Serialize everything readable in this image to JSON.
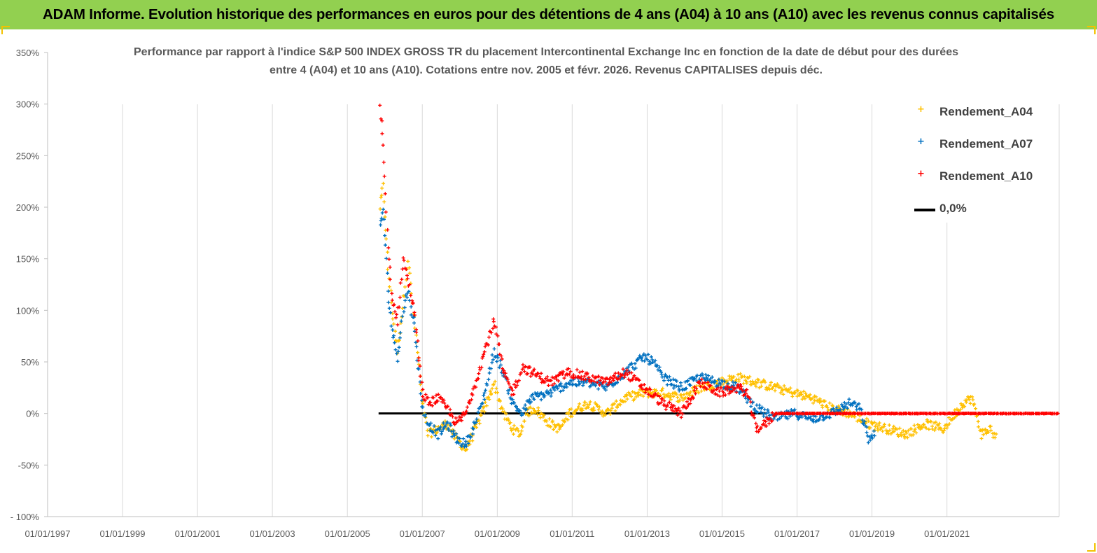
{
  "banner": {
    "title": "ADAM Informe. Evolution historique des performances en euros pour des détentions de 4 ans (A04) à 10 ans (A10) avec les revenus connus capitalisés"
  },
  "chart": {
    "title_line1": "Performance par rapport à l'indice S&P 500 INDEX GROSS TR  du placement Intercontinental Exchange Inc en fonction de la date de début pour des durées",
    "title_line2": "entre 4 (A04) et 10 ans (A10). Cotations entre nov. 2005 et févr. 2026. Revenus CAPITALISES depuis déc."
  },
  "legend": [
    {
      "label": "Rendement_A04",
      "color": "#ffc000",
      "marker": "+"
    },
    {
      "label": "Rendement_A07",
      "color": "#0070c0",
      "marker": "+"
    },
    {
      "label": "Rendement_A10",
      "color": "#ff0000",
      "marker": "+"
    },
    {
      "label": "0,0%",
      "color": "#000000",
      "marker": "line"
    }
  ],
  "chart_data": {
    "type": "scatter",
    "x_ticks": [
      "01/01/1997",
      "01/01/1999",
      "01/01/2001",
      "01/01/2003",
      "01/01/2005",
      "01/01/2007",
      "01/01/2009",
      "01/01/2011",
      "01/01/2013",
      "01/01/2015",
      "01/01/2017",
      "01/01/2019",
      "01/01/2021"
    ],
    "xlim": [
      "1997-01-01",
      "2023-12-31"
    ],
    "y_ticks": [
      "- 100%",
      "-50%",
      "0%",
      "50%",
      "100%",
      "150%",
      "200%",
      "250%",
      "300%",
      "350%"
    ],
    "ylim": [
      -100,
      350
    ],
    "grid": "vertical",
    "legend_position": "right",
    "series": [
      {
        "name": "Rendement_A04",
        "color": "#ffc000",
        "points": [
          [
            "2005-11-15",
            200
          ],
          [
            "2005-12-15",
            220
          ],
          [
            "2006-02-01",
            140
          ],
          [
            "2006-03-15",
            100
          ],
          [
            "2006-05-01",
            60
          ],
          [
            "2006-07-01",
            110
          ],
          [
            "2006-08-15",
            150
          ],
          [
            "2006-10-15",
            90
          ],
          [
            "2006-12-01",
            45
          ],
          [
            "2007-01-01",
            10
          ],
          [
            "2007-03-01",
            -20
          ],
          [
            "2007-06-01",
            -15
          ],
          [
            "2007-09-01",
            -10
          ],
          [
            "2007-12-01",
            -25
          ],
          [
            "2008-03-01",
            -35
          ],
          [
            "2008-06-01",
            -15
          ],
          [
            "2008-09-01",
            5
          ],
          [
            "2008-12-01",
            30
          ],
          [
            "2009-03-01",
            0
          ],
          [
            "2009-06-01",
            -15
          ],
          [
            "2009-08-15",
            -20
          ],
          [
            "2009-10-01",
            0
          ],
          [
            "2010-01-01",
            5
          ],
          [
            "2010-06-01",
            -10
          ],
          [
            "2010-09-01",
            -15
          ],
          [
            "2010-12-01",
            0
          ],
          [
            "2011-06-01",
            10
          ],
          [
            "2011-12-01",
            0
          ],
          [
            "2012-06-01",
            15
          ],
          [
            "2012-12-01",
            20
          ],
          [
            "2013-06-01",
            20
          ],
          [
            "2013-12-01",
            15
          ],
          [
            "2014-06-01",
            25
          ],
          [
            "2014-12-01",
            30
          ],
          [
            "2015-06-01",
            35
          ],
          [
            "2015-12-01",
            30
          ],
          [
            "2016-06-01",
            25
          ],
          [
            "2016-12-01",
            20
          ],
          [
            "2017-06-01",
            15
          ],
          [
            "2017-12-01",
            5
          ],
          [
            "2018-06-01",
            0
          ],
          [
            "2018-12-01",
            -10
          ],
          [
            "2019-06-01",
            -15
          ],
          [
            "2019-12-01",
            -20
          ],
          [
            "2020-06-01",
            -10
          ],
          [
            "2020-12-01",
            -15
          ],
          [
            "2021-06-01",
            10
          ],
          [
            "2021-09-01",
            15
          ],
          [
            "2021-12-01",
            -20
          ],
          [
            "2022-03-01",
            -15
          ],
          [
            "2022-05-01",
            -25
          ]
        ]
      },
      {
        "name": "Rendement_A07",
        "color": "#0070c0",
        "points": [
          [
            "2005-11-15",
            180
          ],
          [
            "2005-12-15",
            200
          ],
          [
            "2006-02-01",
            120
          ],
          [
            "2006-03-15",
            80
          ],
          [
            "2006-05-01",
            55
          ],
          [
            "2006-07-01",
            100
          ],
          [
            "2006-08-15",
            120
          ],
          [
            "2006-10-15",
            85
          ],
          [
            "2006-12-01",
            40
          ],
          [
            "2007-01-01",
            5
          ],
          [
            "2007-03-01",
            -10
          ],
          [
            "2007-06-01",
            -20
          ],
          [
            "2007-09-01",
            -10
          ],
          [
            "2007-12-01",
            -25
          ],
          [
            "2008-03-01",
            -30
          ],
          [
            "2008-06-01",
            -10
          ],
          [
            "2008-09-01",
            20
          ],
          [
            "2008-12-01",
            60
          ],
          [
            "2009-03-01",
            40
          ],
          [
            "2009-06-01",
            10
          ],
          [
            "2009-09-01",
            0
          ],
          [
            "2009-12-01",
            15
          ],
          [
            "2010-06-01",
            20
          ],
          [
            "2010-12-01",
            30
          ],
          [
            "2011-06-01",
            30
          ],
          [
            "2011-12-01",
            25
          ],
          [
            "2012-06-01",
            40
          ],
          [
            "2012-12-01",
            55
          ],
          [
            "2013-03-01",
            50
          ],
          [
            "2013-06-01",
            35
          ],
          [
            "2013-12-01",
            25
          ],
          [
            "2014-06-01",
            35
          ],
          [
            "2014-12-01",
            30
          ],
          [
            "2015-06-01",
            25
          ],
          [
            "2015-12-01",
            5
          ],
          [
            "2016-06-01",
            -5
          ],
          [
            "2016-12-01",
            0
          ],
          [
            "2017-06-01",
            -5
          ],
          [
            "2017-12-01",
            0
          ],
          [
            "2018-06-01",
            10
          ],
          [
            "2018-09-01",
            5
          ],
          [
            "2018-12-01",
            -25
          ],
          [
            "2019-02-01",
            -20
          ]
        ]
      },
      {
        "name": "Rendement_A10",
        "color": "#ff0000",
        "points": [
          [
            "2005-11-15",
            300
          ],
          [
            "2005-12-15",
            260
          ],
          [
            "2006-02-01",
            160
          ],
          [
            "2006-03-15",
            110
          ],
          [
            "2006-05-01",
            90
          ],
          [
            "2006-07-01",
            150
          ],
          [
            "2006-08-15",
            130
          ],
          [
            "2006-10-15",
            100
          ],
          [
            "2006-12-01",
            50
          ],
          [
            "2007-01-01",
            20
          ],
          [
            "2007-03-01",
            10
          ],
          [
            "2007-06-01",
            15
          ],
          [
            "2007-09-01",
            5
          ],
          [
            "2007-12-01",
            -10
          ],
          [
            "2008-03-01",
            0
          ],
          [
            "2008-06-01",
            30
          ],
          [
            "2008-09-01",
            60
          ],
          [
            "2008-12-01",
            90
          ],
          [
            "2009-03-01",
            40
          ],
          [
            "2009-06-01",
            20
          ],
          [
            "2009-09-01",
            45
          ],
          [
            "2009-12-01",
            40
          ],
          [
            "2010-06-01",
            30
          ],
          [
            "2010-12-01",
            40
          ],
          [
            "2011-06-01",
            35
          ],
          [
            "2011-12-01",
            30
          ],
          [
            "2012-06-01",
            40
          ],
          [
            "2012-12-01",
            25
          ],
          [
            "2013-06-01",
            10
          ],
          [
            "2013-12-01",
            0
          ],
          [
            "2014-06-01",
            30
          ],
          [
            "2014-12-01",
            20
          ],
          [
            "2015-06-01",
            25
          ],
          [
            "2015-09-01",
            20
          ],
          [
            "2015-12-01",
            -15
          ],
          [
            "2016-03-01",
            -10
          ],
          [
            "2016-06-01",
            0
          ],
          [
            "2023-12-31",
            0
          ]
        ]
      },
      {
        "name": "0,0%",
        "color": "#000000",
        "points": [
          [
            "2005-11-01",
            0
          ],
          [
            "2016-03-01",
            0
          ]
        ]
      }
    ]
  }
}
